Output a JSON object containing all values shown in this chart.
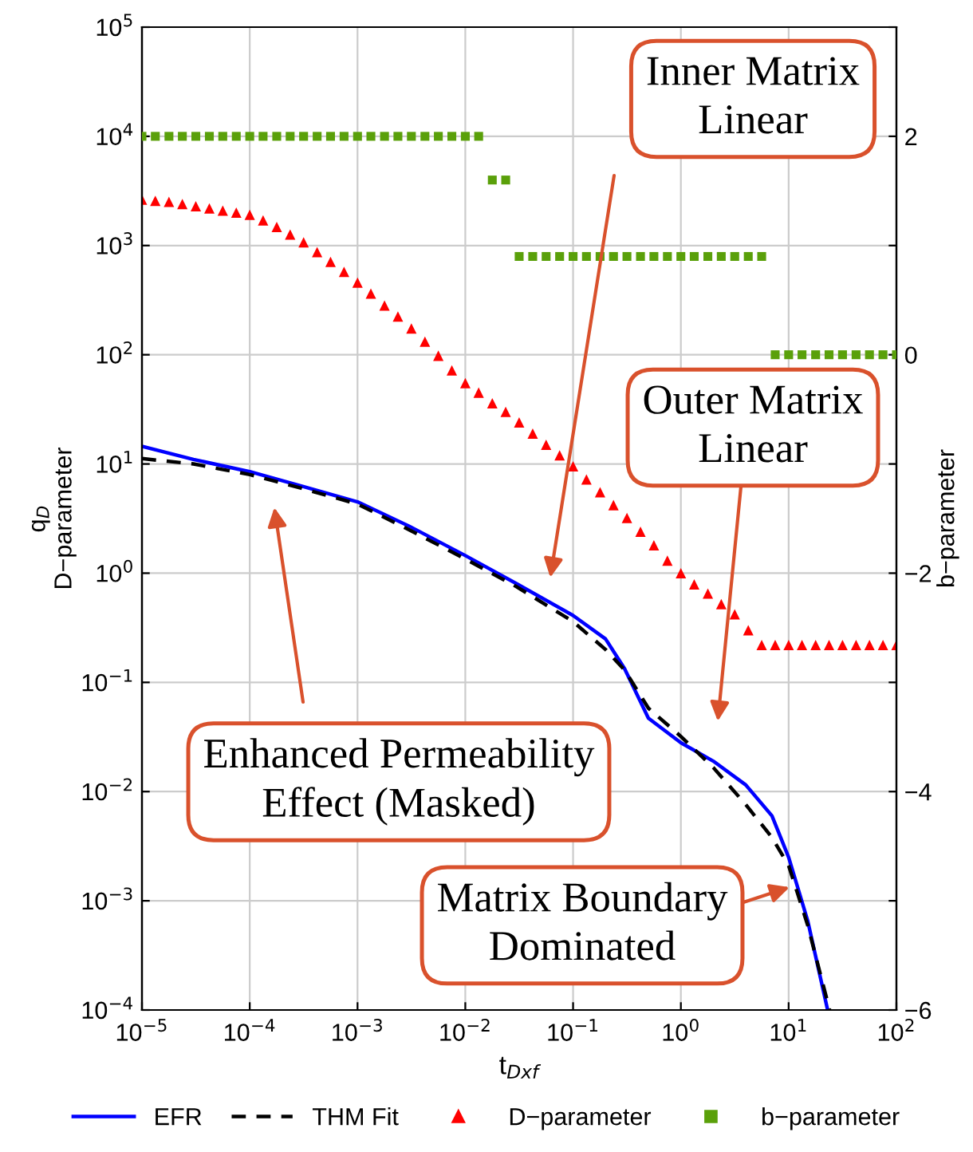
{
  "chart_data": {
    "type": "line",
    "xlabel": "t$_{Dxf}$",
    "ylabel": "q$_{D}$\nD−parameter",
    "y2label": "b−parameter",
    "log": "xy",
    "grid": true,
    "legend": "bottom",
    "xlim": [
      1e-05,
      100
    ],
    "ylim": [
      0.0001,
      100000
    ],
    "y2lim": [
      -6,
      3
    ],
    "xticks": [
      {
        "value": 1e-05,
        "label": "10$^{−5}$"
      },
      {
        "value": 0.0001,
        "label": "10$^{−4}$"
      },
      {
        "value": 0.001,
        "label": "10$^{−3}$"
      },
      {
        "value": 0.01,
        "label": "10$^{−2}$"
      },
      {
        "value": 0.1,
        "label": "10$^{−1}$"
      },
      {
        "value": 1,
        "label": "10$^{0}$"
      },
      {
        "value": 10,
        "label": "10$^{1}$"
      },
      {
        "value": 100,
        "label": "10$^{2}$"
      }
    ],
    "yticks": [
      {
        "value": 0.0001,
        "label": "10$^{−4}$"
      },
      {
        "value": 0.001,
        "label": "10$^{−3}$"
      },
      {
        "value": 0.01,
        "label": "10$^{−2}$"
      },
      {
        "value": 0.1,
        "label": "10$^{−1}$"
      },
      {
        "value": 1,
        "label": "10$^{0}$"
      },
      {
        "value": 10,
        "label": "10$^{1}$"
      },
      {
        "value": 100,
        "label": "10$^{2}$"
      },
      {
        "value": 1000,
        "label": "10$^{3}$"
      },
      {
        "value": 10000,
        "label": "10$^{4}$"
      },
      {
        "value": 100000,
        "label": "10$^{5}$"
      }
    ],
    "y2ticks": [
      {
        "value": -6,
        "label": "−6"
      },
      {
        "value": -5,
        "label": null
      },
      {
        "value": -4,
        "label": "−4"
      },
      {
        "value": -3,
        "label": null
      },
      {
        "value": -2,
        "label": "−2"
      },
      {
        "value": -1,
        "label": null
      },
      0,
      {
        "value": 1,
        "label": null
      },
      2,
      {
        "value": 3,
        "label": null
      }
    ],
    "x": [
      1e-05,
      1.33e-05,
      1.78e-05,
      2.37e-05,
      3.16e-05,
      4.22e-05,
      5.62e-05,
      7.5e-05,
      0.0001,
      0.000133,
      0.000178,
      0.000237,
      0.000316,
      0.000422,
      0.000562,
      0.00075,
      0.001,
      0.00133,
      0.00178,
      0.00237,
      0.00316,
      0.00422,
      0.00562,
      0.0075,
      0.01,
      0.0133,
      0.0178,
      0.0237,
      0.0316,
      0.0422,
      0.0562,
      0.075,
      0.1,
      0.133,
      0.178,
      0.237,
      0.316,
      0.422,
      0.562,
      0.75,
      1,
      1.33,
      1.78,
      2.37,
      3.16,
      4.22,
      5.62,
      7.5,
      10,
      13.3,
      17.8,
      23.7,
      31.6,
      42.2,
      56.2,
      75,
      100
    ],
    "series": [
      {
        "name": "EFR",
        "color": "#0000ff",
        "marker": "none",
        "line_style": "solid",
        "x": [
          1e-05,
          3e-05,
          0.0001,
          0.0003,
          0.001,
          0.003,
          0.01,
          0.03,
          0.1,
          0.2,
          0.3,
          0.5,
          1,
          2,
          4,
          7,
          10,
          15,
          23
        ],
        "values": [
          14.5,
          11,
          8.5,
          6.3,
          4.5,
          2.7,
          1.45,
          0.8,
          0.41,
          0.25,
          0.134,
          0.047,
          0.028,
          0.019,
          0.0115,
          0.006,
          0.0025,
          0.00066,
          0.0001
        ]
      },
      {
        "name": "THM Fit",
        "color": "#000000",
        "marker": "none",
        "line_style": "dashed",
        "x": [
          1e-05,
          3e-05,
          0.0001,
          0.0003,
          0.001,
          0.003,
          0.01,
          0.03,
          0.1,
          0.2,
          0.3,
          0.5,
          1,
          2,
          4,
          7,
          10,
          15,
          24
        ],
        "values": [
          11.2,
          10,
          8,
          6,
          4.3,
          2.5,
          1.35,
          0.75,
          0.36,
          0.2,
          0.13,
          0.058,
          0.032,
          0.0166,
          0.0076,
          0.0038,
          0.0021,
          0.0006,
          0.0001
        ]
      },
      {
        "name": "D−parameter",
        "type": "scatter",
        "color": "#ff0000",
        "marker": "triangle",
        "values": [
          2630,
          2570,
          2510,
          2400,
          2290,
          2190,
          2090,
          2000,
          1910,
          1700,
          1480,
          1260,
          1070,
          871,
          708,
          575,
          457,
          363,
          282,
          224,
          174,
          132,
          98,
          72,
          55,
          45,
          36,
          30,
          24,
          19,
          15,
          12,
          9.5,
          7.2,
          5.5,
          4.2,
          3.2,
          2.4,
          1.8,
          1.3,
          1.0,
          0.79,
          0.65,
          0.52,
          0.42,
          0.3,
          0.22,
          0.22,
          0.22,
          0.22,
          0.22,
          0.22,
          0.22,
          0.22,
          0.22,
          0.22,
          0.22
        ]
      },
      {
        "name": "b−parameter",
        "type": "scatter",
        "axis": "y2",
        "color": "#5aa00a",
        "marker": "square",
        "values": [
          2,
          2,
          2,
          2,
          2,
          2,
          2,
          2,
          2,
          2,
          2,
          2,
          2,
          2,
          2,
          2,
          2,
          2,
          2,
          2,
          2,
          2,
          2,
          2,
          2,
          2,
          1.6,
          1.6,
          0.9,
          0.9,
          0.9,
          0.9,
          0.9,
          0.9,
          0.9,
          0.9,
          0.9,
          0.9,
          0.9,
          0.9,
          0.9,
          0.9,
          0.9,
          0.9,
          0.9,
          0.9,
          0.9,
          0,
          0,
          0,
          0,
          0,
          0,
          0,
          0,
          0,
          0
        ]
      }
    ],
    "annotations": [
      "Inner Matrix\nLinear",
      "Outer Matrix\nLinear",
      "Enhanced Permeability\nEffect (Masked)",
      "Matrix Boundary\nDominated"
    ]
  }
}
